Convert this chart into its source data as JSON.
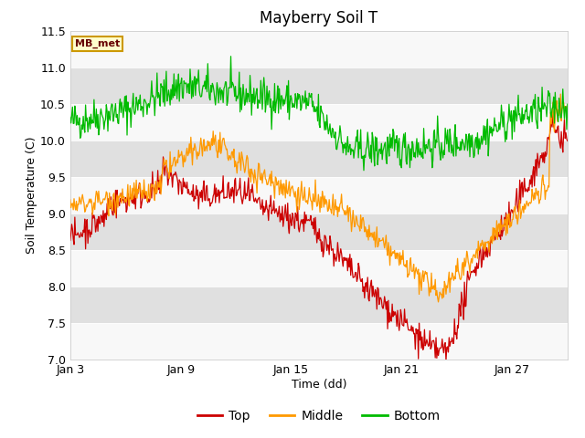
{
  "title": "Mayberry Soil T",
  "xlabel": "Time (dd)",
  "ylabel": "Soil Temperature (C)",
  "ylim": [
    7.0,
    11.5
  ],
  "yticks": [
    7.0,
    7.5,
    8.0,
    8.5,
    9.0,
    9.5,
    10.0,
    10.5,
    11.0,
    11.5
  ],
  "xtick_labels": [
    "Jan 3",
    "Jan 9",
    "Jan 15",
    "Jan 21",
    "Jan 27"
  ],
  "xtick_positions": [
    0,
    6,
    12,
    18,
    24
  ],
  "n_days": 27,
  "samples_per_day": 24,
  "background_color": "#ffffff",
  "plot_bg_color": "#f0f0f0",
  "band_light": "#f8f8f8",
  "band_dark": "#e0e0e0",
  "top_color": "#cc0000",
  "middle_color": "#ff9900",
  "bottom_color": "#00bb00",
  "legend_label_top": "Top",
  "legend_label_middle": "Middle",
  "legend_label_bottom": "Bottom",
  "legend_box_label": "MB_met",
  "legend_box_bg": "#ffffcc",
  "legend_box_border": "#cc9900",
  "title_fontsize": 12
}
